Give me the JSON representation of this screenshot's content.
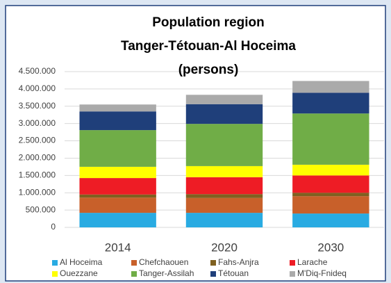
{
  "chart_data": {
    "type": "stacked_bar",
    "title": [
      "Population region",
      "Tanger-Tétouan-Al Hoceima",
      "(persons)"
    ],
    "categories": [
      "2014",
      "2020",
      "2030"
    ],
    "series": [
      {
        "name": "Al Hoceima",
        "color": "#29abe2",
        "values": [
          420000,
          420000,
          400000
        ]
      },
      {
        "name": "Chefchaouen",
        "color": "#c8602a",
        "values": [
          440000,
          430000,
          500000
        ]
      },
      {
        "name": "Fahs-Anjra",
        "color": "#7f6020",
        "values": [
          90000,
          110000,
          100000
        ]
      },
      {
        "name": "Larache",
        "color": "#ee1c25",
        "values": [
          475000,
          490000,
          500000
        ]
      },
      {
        "name": "Ouezzane",
        "color": "#ffff00",
        "values": [
          325000,
          320000,
          310000
        ]
      },
      {
        "name": "Tanger-Assilah",
        "color": "#70ad47",
        "values": [
          1060000,
          1220000,
          1480000
        ]
      },
      {
        "name": "Tétouan",
        "color": "#1f3f7a",
        "values": [
          540000,
          570000,
          600000
        ]
      },
      {
        "name": "M'Diq-Fnideq",
        "color": "#aaaaaa",
        "values": [
          200000,
          270000,
          340000
        ]
      }
    ],
    "ylim": [
      0,
      4500000
    ],
    "yticks": [
      0,
      {
        "value": 500000,
        "label": "500.000"
      },
      {
        "value": 1000000,
        "label": "1.000.000"
      },
      {
        "value": 1500000,
        "label": "1.500.000"
      },
      {
        "value": 2000000,
        "label": "2.000.000"
      },
      {
        "value": 2500000,
        "label": "2.500.000"
      },
      {
        "value": 3000000,
        "label": "3.000.000"
      },
      {
        "value": 3500000,
        "label": "3.500.000"
      },
      {
        "value": 4000000,
        "label": "4.000.000"
      },
      {
        "value": 4500000,
        "label": "4.500.000"
      }
    ],
    "grid": true,
    "legend": "bottom"
  }
}
